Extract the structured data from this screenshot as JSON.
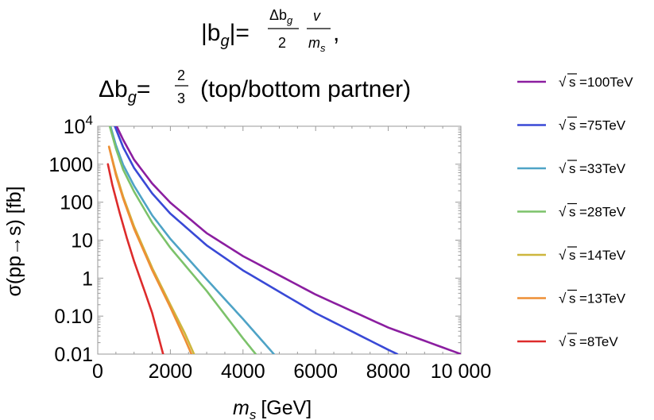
{
  "chart_data": {
    "type": "line",
    "title_line1": {
      "lhs": "|b",
      "lhs_sub": "g",
      "lhs_end": "|=",
      "frac1_num": "Δb",
      "frac1_num_sub": "g",
      "frac1_den": "2",
      "frac2_num": "v",
      "frac2_den": "m",
      "frac2_den_sub": "s",
      "trail": ","
    },
    "title_line2": {
      "lhs": "Δb",
      "lhs_sub": "g",
      "eq": "=",
      "frac_num": "2",
      "frac_den": "3",
      "rest": "(top/bottom partner)"
    },
    "xlabel": "m",
    "xlabel_sub": "s",
    "xlabel_unit": "[GeV]",
    "ylabel": "σ(pp→s) [fb]",
    "xlim": [
      0,
      10000
    ],
    "ylim": [
      0.01,
      10000
    ],
    "y_scale": "log",
    "x_ticks": [
      {
        "value": 0,
        "label": "0"
      },
      {
        "value": 2000,
        "label": "2000"
      },
      {
        "value": 4000,
        "label": "4000"
      },
      {
        "value": 6000,
        "label": "6000"
      },
      {
        "value": 8000,
        "label": "8000"
      },
      {
        "value": 10000,
        "label": "10 000"
      }
    ],
    "y_ticks": [
      {
        "value": 10000,
        "base": "10",
        "exp": "4"
      },
      {
        "value": 1000,
        "base": "1000",
        "exp": ""
      },
      {
        "value": 100,
        "base": "100",
        "exp": ""
      },
      {
        "value": 10,
        "base": "10",
        "exp": ""
      },
      {
        "value": 1,
        "base": "1",
        "exp": ""
      },
      {
        "value": 0.1,
        "base": "0.10",
        "exp": ""
      },
      {
        "value": 0.01,
        "base": "0.01",
        "exp": ""
      }
    ],
    "grid": false,
    "legend_position": "right",
    "series": [
      {
        "name": "=100TeV",
        "color": "#8b1ea0",
        "x": [
          520,
          700,
          1000,
          1500,
          2000,
          3000,
          4000,
          6000,
          8000,
          10000
        ],
        "y": [
          10000,
          4400,
          1320,
          310,
          97,
          15.3,
          3.8,
          0.37,
          0.05,
          0.01
        ]
      },
      {
        "name": "=75TeV",
        "color": "#3949d6",
        "x": [
          470,
          700,
          1000,
          1500,
          2000,
          3000,
          4000,
          6000,
          8000,
          8250
        ],
        "y": [
          10000,
          2800,
          800,
          170,
          50,
          7.3,
          1.6,
          0.12,
          0.013,
          0.01
        ]
      },
      {
        "name": "=33TeV",
        "color": "#4ea3c6",
        "x": [
          350,
          500,
          700,
          1000,
          1500,
          2000,
          3000,
          4000,
          4850
        ],
        "y": [
          10000,
          3200,
          960,
          270,
          45,
          10.8,
          0.93,
          0.084,
          0.01
        ]
      },
      {
        "name": "=28TeV",
        "color": "#7cc26a",
        "x": [
          330,
          500,
          700,
          1000,
          1500,
          2000,
          3000,
          4000,
          4350
        ],
        "y": [
          10000,
          2600,
          720,
          190,
          29,
          6.3,
          0.46,
          0.026,
          0.01
        ]
      },
      {
        "name": "=14TeV",
        "color": "#cdb63d",
        "x": [
          310,
          500,
          700,
          1000,
          1500,
          2000,
          2400,
          2650
        ],
        "y": [
          2900,
          590,
          140,
          23,
          1.85,
          0.2,
          0.035,
          0.01
        ]
      },
      {
        "name": "=13TeV",
        "color": "#ee8f35",
        "x": [
          310,
          500,
          700,
          1000,
          1500,
          2000,
          2400,
          2580
        ],
        "y": [
          2900,
          520,
          125,
          20,
          1.62,
          0.17,
          0.025,
          0.01
        ]
      },
      {
        "name": "=8TeV",
        "color": "#dd2b2b",
        "x": [
          280,
          400,
          600,
          800,
          1000,
          1300,
          1500,
          1800
        ],
        "y": [
          1000,
          290,
          54,
          11.5,
          2.8,
          0.43,
          0.12,
          0.01
        ]
      }
    ],
    "legend_sqrt_symbol": "√",
    "legend_radicand": "s"
  }
}
